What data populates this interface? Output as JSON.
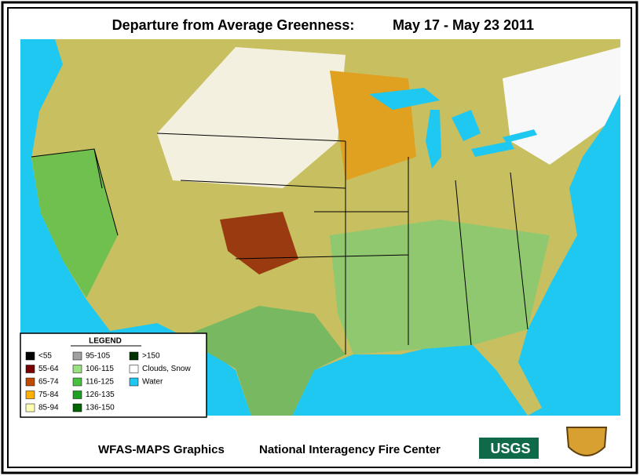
{
  "header": {
    "title": "Departure from Average Greenness:",
    "dates": "May 17 - May 23 2011"
  },
  "legend": {
    "title": "LEGEND",
    "items": [
      {
        "label": "<55",
        "color": "#000000"
      },
      {
        "label": "55-64",
        "color": "#7a0000"
      },
      {
        "label": "65-74",
        "color": "#c04a00"
      },
      {
        "label": "75-84",
        "color": "#ffb000"
      },
      {
        "label": "85-94",
        "color": "#ffffb4"
      },
      {
        "label": "95-105",
        "color": "#a0a0a0"
      },
      {
        "label": "106-115",
        "color": "#98e080"
      },
      {
        "label": "116-125",
        "color": "#48c040"
      },
      {
        "label": "126-135",
        "color": "#20a020"
      },
      {
        "label": "136-150",
        "color": "#006400"
      },
      {
        "label": ">150",
        "color": "#003200"
      },
      {
        "label": "Clouds, Snow",
        "color": "#ffffff"
      },
      {
        "label": "Water",
        "color": "#1ec8f0"
      }
    ]
  },
  "footer": {
    "credit": "WFAS-MAPS Graphics",
    "agency": "National Interagency Fire Center",
    "logo": "USGS"
  }
}
